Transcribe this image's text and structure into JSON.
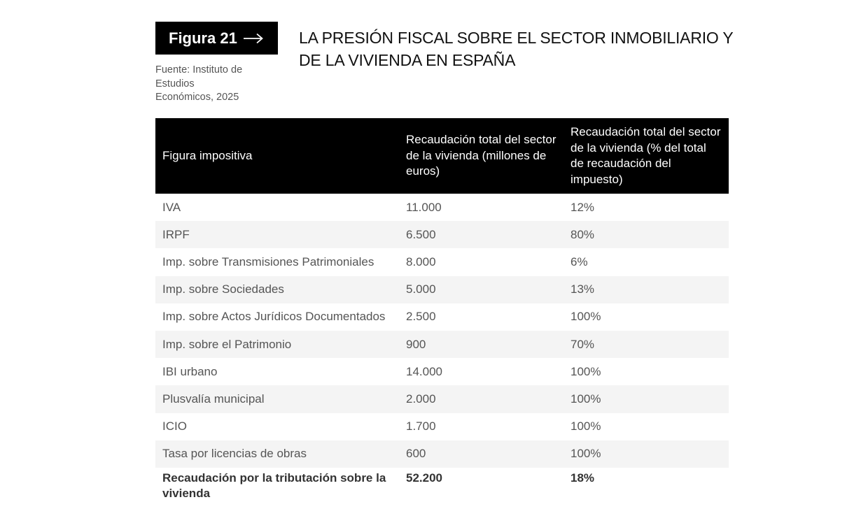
{
  "figure": {
    "label": "Figura 21"
  },
  "source": {
    "text": "Fuente: Instituto de Estudios Económicos, 2025"
  },
  "title": "LA PRESIÓN FISCAL SOBRE EL SECTOR INMOBILIARIO Y DE LA VIVIENDA EN ESPAÑA",
  "table": {
    "headers": [
      "Figura impositiva",
      "Recaudación total del sector de la vivienda (millones de euros)",
      "Recaudación total del sector de la vivienda (% del total de recaudación del impuesto)"
    ],
    "rows": [
      [
        "IVA",
        "11.000",
        "12%"
      ],
      [
        "IRPF",
        "6.500",
        "80%"
      ],
      [
        "Imp. sobre Transmisiones Patrimoniales",
        "8.000",
        "6%"
      ],
      [
        "Imp. sobre Sociedades",
        "5.000",
        "13%"
      ],
      [
        "Imp. sobre Actos Jurídicos Documentados",
        "2.500",
        "100%"
      ],
      [
        "Imp. sobre el Patrimonio",
        "900",
        "70%"
      ],
      [
        "IBI urbano",
        "14.000",
        "100%"
      ],
      [
        "Plusvalía municipal",
        "2.000",
        "100%"
      ],
      [
        "ICIO",
        "1.700",
        "100%"
      ],
      [
        "Tasa por licencias de obras",
        "600",
        "100%"
      ]
    ],
    "total": [
      "Recaudación por la tributación sobre la vivienda",
      "52.200",
      "18%"
    ]
  }
}
